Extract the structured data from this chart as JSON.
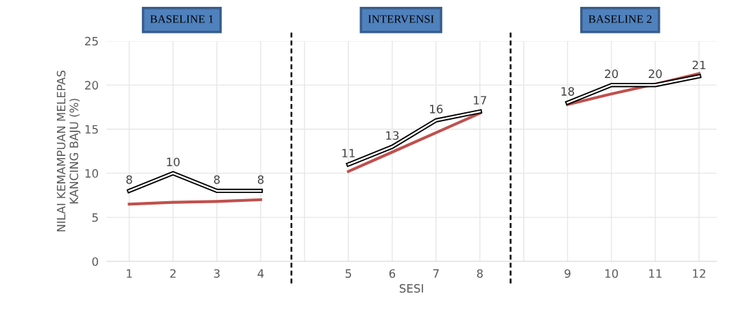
{
  "chart_data": {
    "type": "line",
    "categories": [
      "1",
      "2",
      "3",
      "4",
      null,
      "5",
      "6",
      "7",
      "8",
      null,
      "9",
      "10",
      "11",
      "12"
    ],
    "series": [
      {
        "color": "#000000",
        "values": [
          8,
          10,
          8,
          8,
          null,
          11,
          13,
          16,
          17,
          null,
          18,
          20,
          20,
          21
        ],
        "data_labels": true
      },
      {
        "color": "#c0504d",
        "values": [
          6.5,
          6.7,
          6.8,
          7.0,
          null,
          null,
          null,
          null,
          null,
          null,
          null,
          null,
          null,
          null
        ]
      },
      {
        "color": "#c0504d",
        "values": [
          null,
          null,
          null,
          null,
          null,
          10.2,
          12.4,
          14.6,
          16.8,
          null,
          null,
          null,
          null,
          null
        ]
      },
      {
        "color": "#c0504d",
        "values": [
          null,
          null,
          null,
          null,
          null,
          null,
          null,
          null,
          null,
          null,
          17.8,
          19.0,
          20.1,
          21.3
        ]
      }
    ],
    "ylim": [
      0,
      25
    ],
    "yticks": [
      0,
      5,
      10,
      15,
      20,
      25
    ],
    "ylabel": "NILAI KEMAMPUAN MELEPAS\nKANCING BAJU (%)",
    "xlabel": "SESI",
    "annotations": [
      "BASELINE 1",
      "INTERVENSI",
      "BASELINE 2"
    ],
    "grid": true,
    "marker": "none",
    "legend": false
  }
}
